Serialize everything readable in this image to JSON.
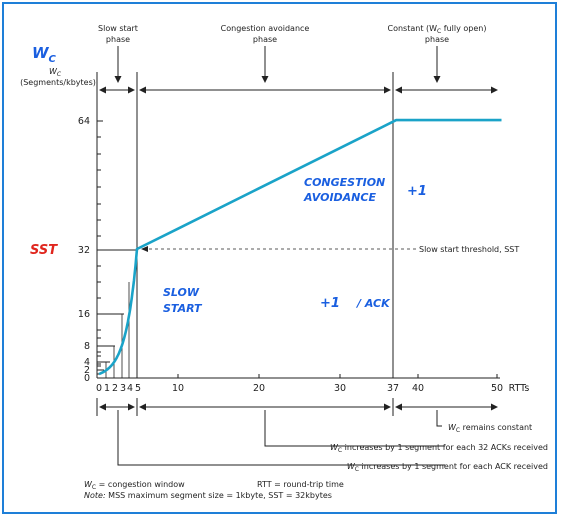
{
  "phases": {
    "slow_start": [
      "Slow start",
      "phase"
    ],
    "congestion_avoidance": [
      "Congestion avoidance",
      "phase"
    ],
    "constant": [
      "Constant (W",
      "C",
      " fully open)",
      "phase"
    ]
  },
  "y_axis": {
    "symbol": "W",
    "symbol_sub": "C",
    "label_line2": "(Segments/kbytes)",
    "ticks": [
      "64",
      "32",
      "16",
      "8",
      "4",
      "2",
      "0"
    ]
  },
  "x_axis": {
    "label": "RTTs",
    "ticks": [
      "0",
      "1",
      "2",
      "3",
      "4",
      "5",
      "10",
      "20",
      "30",
      "37",
      "40",
      "50"
    ]
  },
  "threshold_label": "Slow start threshold, SST",
  "bottom_notes": {
    "constant_pre": "W",
    "constant_sub": "C",
    "constant_post": " remains constant",
    "ca_pre": "W",
    "ca_sub": "C",
    "ca_post": " increases by 1 segment for each 32 ACKs received",
    "ss_pre": "W",
    "ss_sub": "C",
    "ss_post": " increases by 1 segment for each ACK received"
  },
  "legend": {
    "wc_pre": "W",
    "wc_sub": "C",
    "wc_post": " = congestion window",
    "rtt": "RTT = round-trip time",
    "note_label": "Note:",
    "note_text": " MSS maximum segment size = 1kbyte, SST = 32kbytes"
  },
  "handwriting": {
    "wc": "W",
    "wc_sub": "C",
    "sst": "SST",
    "congestion": "CONGESTION",
    "avoidance": "AVOIDANCE",
    "plus_one_a": "+1",
    "slow": "SLOW",
    "start": "START",
    "plus_one_b": "+1",
    "per_ack": "/ ACK"
  },
  "colors": {
    "border": "#1e7fd8",
    "curve": "#1aa3c8",
    "hand_blue": "#1a5fe0",
    "hand_red": "#e0261e"
  },
  "chart_data": {
    "type": "line",
    "x": [
      0,
      1,
      2,
      3,
      4,
      5,
      10,
      20,
      30,
      37,
      40,
      50
    ],
    "y": [
      1,
      2,
      4,
      8,
      16,
      32,
      37,
      47,
      57,
      64,
      64,
      64
    ],
    "xlabel": "RTTs",
    "ylabel": "WC (Segments/kbytes)",
    "threshold": 32
  }
}
